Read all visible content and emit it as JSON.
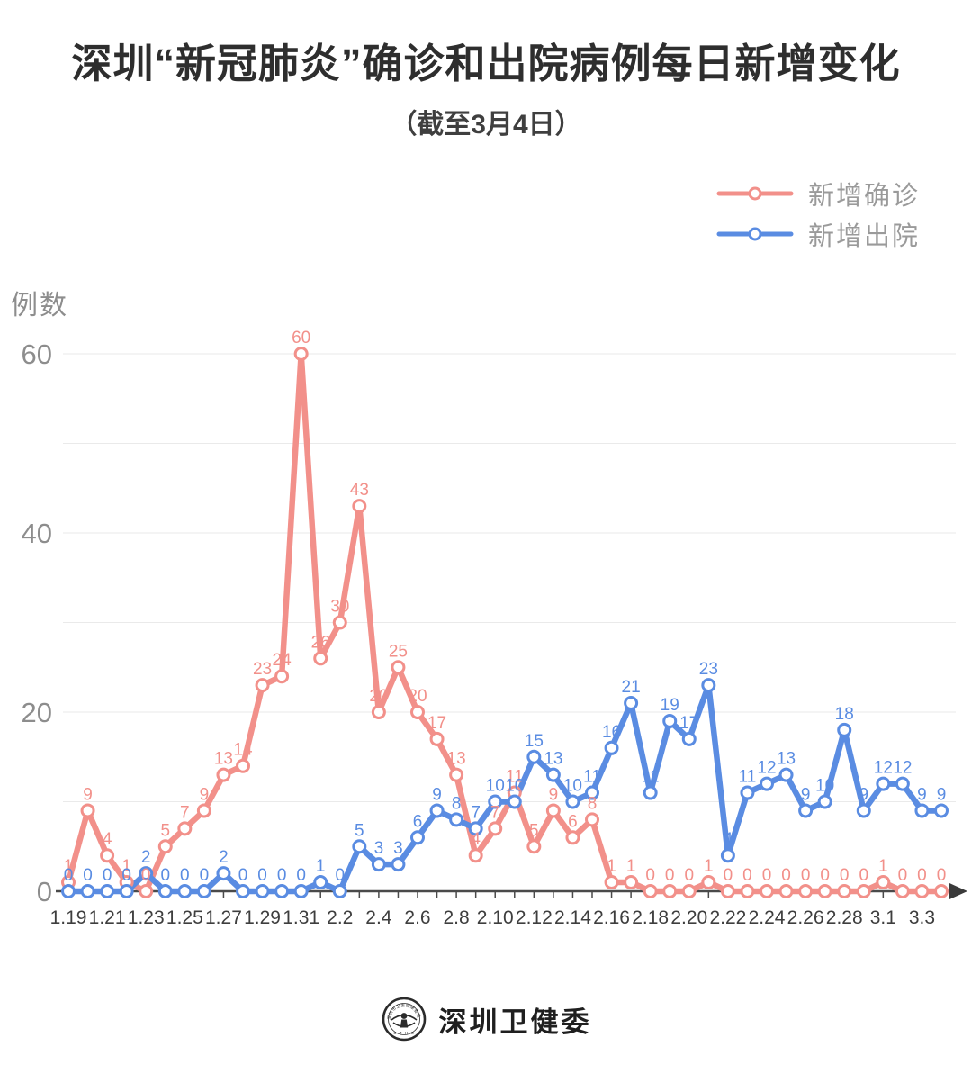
{
  "page": {
    "title": "深圳“新冠肺炎”确诊和出院病例每日新增变化",
    "subtitle": "（截至3月4日）"
  },
  "legend": {
    "items": [
      {
        "label": "新增确诊",
        "color": "#F2908A"
      },
      {
        "label": "新增出院",
        "color": "#5A8CE2"
      }
    ]
  },
  "y_axis": {
    "label": "例数"
  },
  "footer": {
    "brand": "深圳卫健委",
    "logo": "shenzhen-health-commission-emblem"
  },
  "chart_data": {
    "type": "line",
    "title": "深圳“新冠肺炎”确诊和出院病例每日新增变化",
    "subtitle": "（截至3月4日）",
    "ylabel": "例数",
    "legend_position": "top-right",
    "grid": "horizontal",
    "grid_interval": 10,
    "ylim": [
      0,
      63
    ],
    "y_ticks": [
      0,
      20,
      40,
      60
    ],
    "x_label_every": 2,
    "x": [
      "1.19",
      "1.20",
      "1.21",
      "1.22",
      "1.23",
      "1.24",
      "1.25",
      "1.26",
      "1.27",
      "1.28",
      "1.29",
      "1.30",
      "1.31",
      "2.1",
      "2.2",
      "2.3",
      "2.4",
      "2.5",
      "2.6",
      "2.7",
      "2.8",
      "2.9",
      "2.10",
      "2.11",
      "2.12",
      "2.13",
      "2.14",
      "2.15",
      "2.16",
      "2.17",
      "2.18",
      "2.19",
      "2.20",
      "2.21",
      "2.22",
      "2.23",
      "2.24",
      "2.25",
      "2.26",
      "2.27",
      "2.28",
      "2.29",
      "3.1",
      "3.2",
      "3.3",
      "3.4"
    ],
    "x_tick_labels_shown": [
      "1.19",
      "1.21",
      "1.23",
      "1.25",
      "1.27",
      "1.29",
      "1.31",
      "2.2",
      "2.4",
      "2.6",
      "2.8",
      "2.10",
      "2.12",
      "2.14",
      "2.16",
      "2.18",
      "2.20",
      "2.22",
      "2.24",
      "2.26",
      "2.28",
      "3.1",
      "3.3"
    ],
    "series": [
      {
        "name": "新增确诊",
        "color": "#F2908A",
        "values": [
          1,
          9,
          4,
          1,
          0,
          5,
          7,
          9,
          13,
          14,
          23,
          24,
          60,
          26,
          30,
          43,
          20,
          25,
          20,
          17,
          13,
          4,
          7,
          11,
          5,
          9,
          6,
          8,
          1,
          1,
          0,
          0,
          0,
          1,
          0,
          0,
          0,
          0,
          0,
          0,
          0,
          0,
          1,
          0,
          0,
          0
        ]
      },
      {
        "name": "新增出院",
        "color": "#5A8CE2",
        "values": [
          0,
          0,
          0,
          0,
          2,
          0,
          0,
          0,
          2,
          0,
          0,
          0,
          0,
          1,
          0,
          5,
          3,
          3,
          6,
          9,
          8,
          7,
          10,
          10,
          15,
          13,
          10,
          11,
          16,
          21,
          11,
          19,
          17,
          23,
          4,
          11,
          12,
          13,
          9,
          10,
          18,
          9,
          12,
          12,
          9,
          9
        ]
      }
    ]
  }
}
